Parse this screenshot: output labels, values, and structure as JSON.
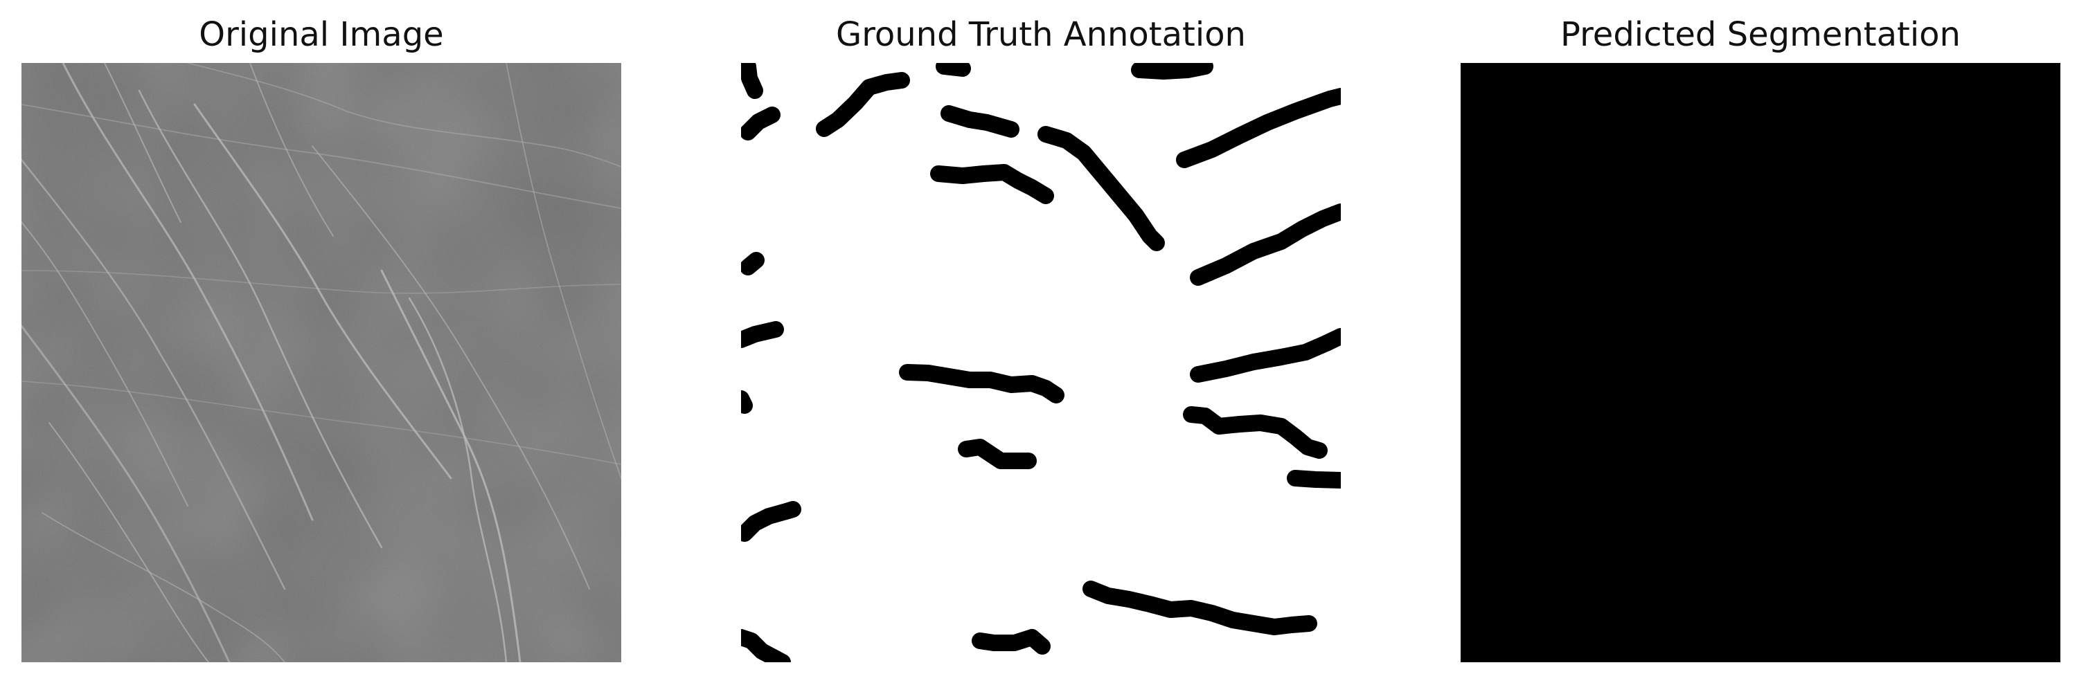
{
  "figure": {
    "panels": [
      {
        "title": "Original Image"
      },
      {
        "title": "Ground Truth Annotation"
      },
      {
        "title": "Predicted Segmentation"
      }
    ]
  },
  "colors": {
    "background": "#ffffff",
    "original_base": "#6e6e6e",
    "original_crack": "#b8b8b8",
    "mask_foreground": "#000000",
    "mask_background": "#ffffff",
    "prediction_fill": "#000000"
  }
}
